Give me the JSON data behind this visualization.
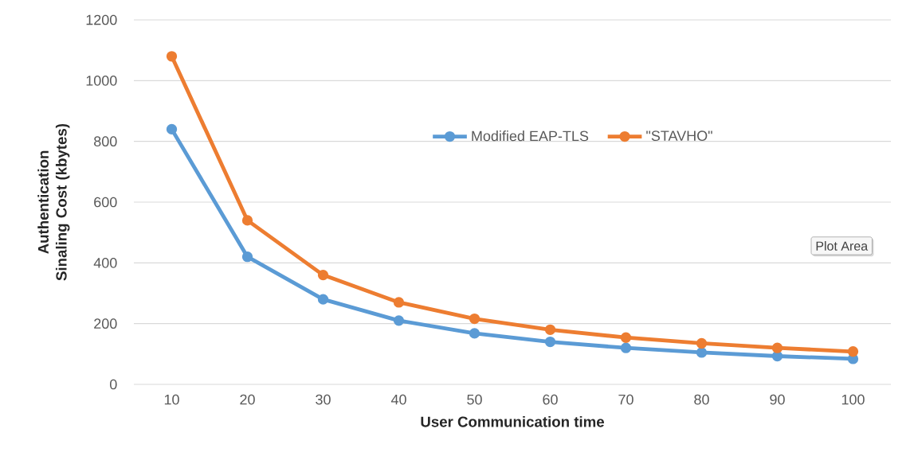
{
  "chart_data": {
    "type": "line",
    "xlabel": "User Communication time",
    "ylabel": "Authentication Sinaling Cost (kbytes)",
    "categories": [
      "10",
      "20",
      "30",
      "40",
      "50",
      "60",
      "70",
      "80",
      "90",
      "100"
    ],
    "series": [
      {
        "name": "Modified EAP-TLS",
        "color": "#5b9bd5",
        "values": [
          840,
          420,
          280,
          210,
          168,
          140,
          120,
          105,
          93,
          84
        ]
      },
      {
        "name": "\"STAVHO\"",
        "color": "#ed7d31",
        "values": [
          1080,
          540,
          360,
          270,
          216,
          180,
          154,
          135,
          120,
          108
        ]
      }
    ],
    "ylim": [
      0,
      1200
    ],
    "yticks": [
      0,
      200,
      400,
      600,
      800,
      1000,
      1200
    ],
    "grid": "y",
    "legend": "top",
    "marker": "circle",
    "line_style": "solid",
    "annotations": [
      "Plot Area"
    ]
  }
}
